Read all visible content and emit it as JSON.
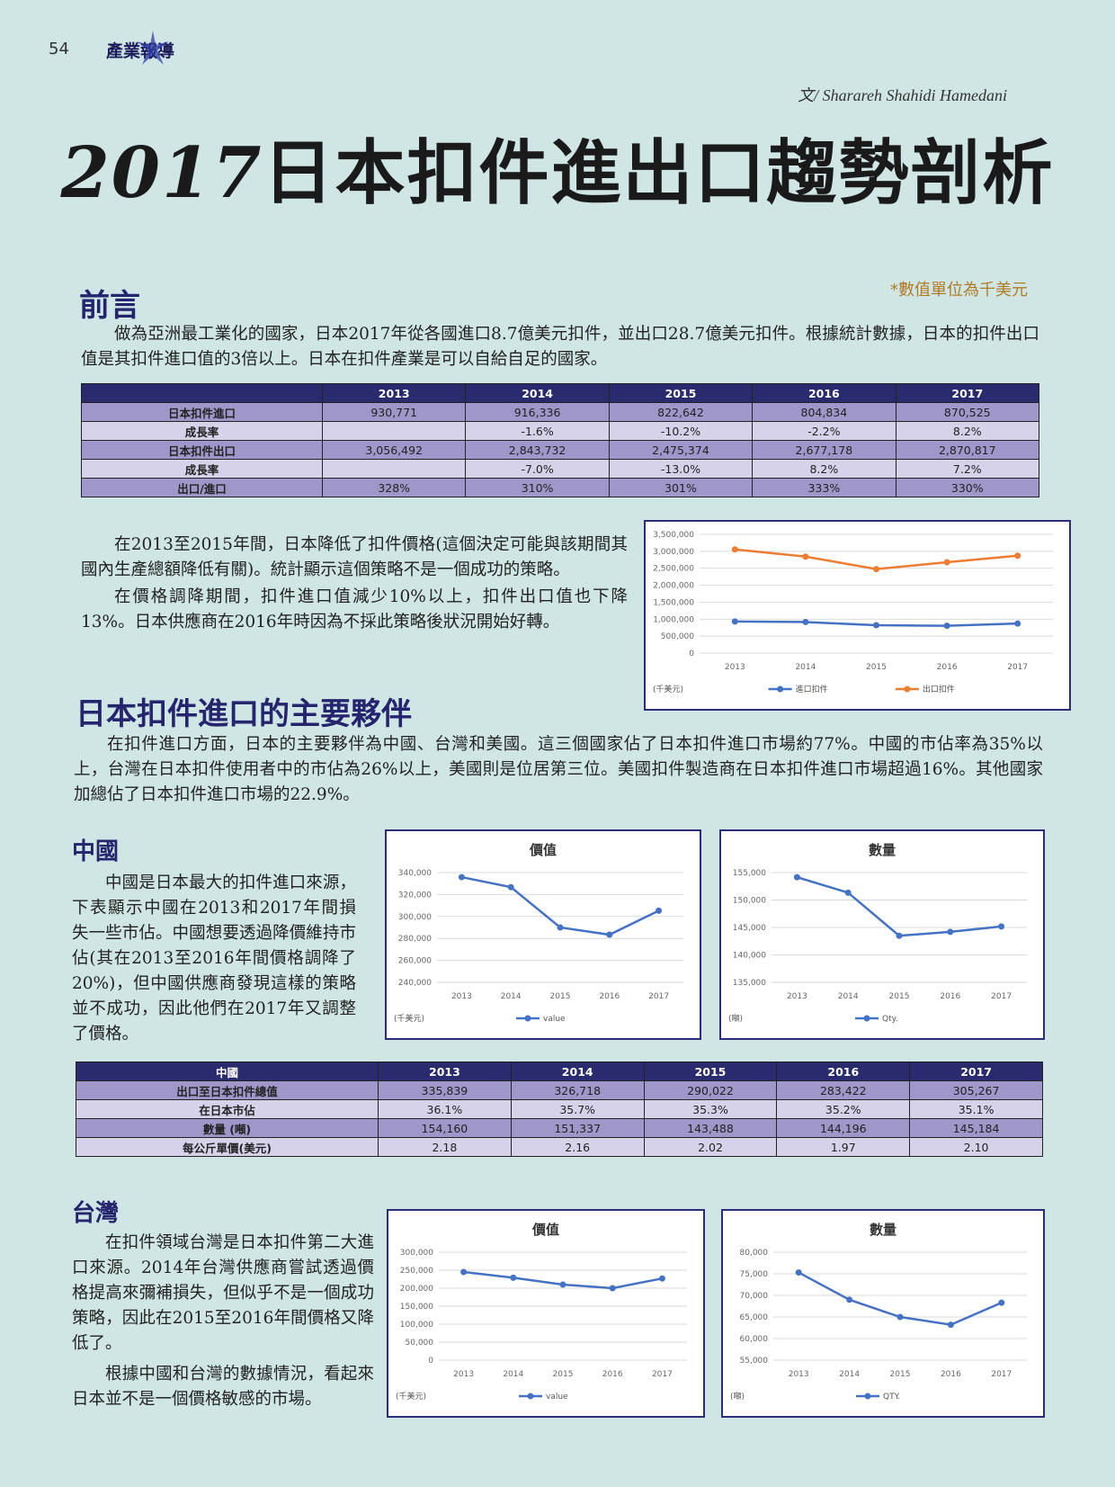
{
  "page": {
    "number": "54",
    "section_tag": "產業報導",
    "author": "文/ Sharareh Shahidi Hamedani",
    "title_year": "2017",
    "title_text": "日本扣件進出口趨勢剖析",
    "unit_note": "*數值單位為千美元"
  },
  "intro": {
    "heading": "前言",
    "p1": "做為亞洲最工業化的國家，日本2017年從各國進口8.7億美元扣件，並出口28.7億美元扣件。根據統計數據，日本的扣件出口值是其扣件進口值的3倍以上。日本在扣件產業是可以自給自足的國家。",
    "p2": "在2013至2015年間，日本降低了扣件價格(這個決定可能與該期間其國內生產總額降低有關)。統計顯示這個策略不是一個成功的策略。",
    "p3": "在價格調降期間，扣件進口值減少10%以上，扣件出口值也下降13%。日本供應商在2016年時因為不採此策略後狀況開始好轉。"
  },
  "overview_table": {
    "header": [
      "",
      "2013",
      "2014",
      "2015",
      "2016",
      "2017"
    ],
    "rows": [
      [
        "日本扣件進口",
        "930,771",
        "916,336",
        "822,642",
        "804,834",
        "870,525"
      ],
      [
        "成長率",
        "",
        "-1.6%",
        "-10.2%",
        "-2.2%",
        "8.2%"
      ],
      [
        "日本扣件出口",
        "3,056,492",
        "2,843,732",
        "2,475,374",
        "2,677,178",
        "2,870,817"
      ],
      [
        "成長率",
        "",
        "-7.0%",
        "-13.0%",
        "8.2%",
        "7.2%"
      ],
      [
        "出口/進口",
        "328%",
        "310%",
        "301%",
        "333%",
        "330%"
      ]
    ]
  },
  "partners": {
    "heading": "日本扣件進口的主要夥伴",
    "p1": "在扣件進口方面，日本的主要夥伴為中國、台灣和美國。這三個國家佔了日本扣件進口市場約77%。中國的市佔率為35%以上，台灣在日本扣件使用者中的市佔為26%以上，美國則是位居第三位。美國扣件製造商在日本扣件進口市場超過16%。其他國家加總佔了日本扣件進口市場的22.9%。"
  },
  "china": {
    "heading": "中國",
    "p1": "中國是日本最大的扣件進口來源，下表顯示中國在2013和2017年間損失一些市佔。中國想要透過降價維持市佔(其在2013至2016年間價格調降了20%)，但中國供應商發現這樣的策略並不成功，因此他們在2017年又調整了價格。",
    "table": {
      "header": [
        "中國",
        "2013",
        "2014",
        "2015",
        "2016",
        "2017"
      ],
      "rows": [
        [
          "出口至日本扣件總值",
          "335,839",
          "326,718",
          "290,022",
          "283,422",
          "305,267"
        ],
        [
          "在日本市佔",
          "36.1%",
          "35.7%",
          "35.3%",
          "35.2%",
          "35.1%"
        ],
        [
          "數量 (噸)",
          "154,160",
          "151,337",
          "143,488",
          "144,196",
          "145,184"
        ],
        [
          "每公斤單價(美元)",
          "2.18",
          "2.16",
          "2.02",
          "1.97",
          "2.10"
        ]
      ]
    }
  },
  "taiwan": {
    "heading": "台灣",
    "p1": "在扣件領域台灣是日本扣件第二大進口來源。2014年台灣供應商嘗試透過價格提高來彌補損失，但似乎不是一個成功策略，因此在2015至2016年間價格又降低了。",
    "p2": "根據中國和台灣的數據情況，看起來日本並不是一個價格敏感的市場。"
  },
  "chart_data": [
    {
      "id": "japan_trade",
      "type": "line",
      "title": "",
      "x": [
        "2013",
        "2014",
        "2015",
        "2016",
        "2017"
      ],
      "ylim": [
        0,
        3500000
      ],
      "yticks": [
        0,
        500000,
        1000000,
        1500000,
        2000000,
        2500000,
        3000000,
        3500000
      ],
      "ytick_labels": [
        "0",
        "500,000",
        "1,000,000",
        "1,500,000",
        "2,000,000",
        "2,500,000",
        "3,000,000",
        "3,500,000"
      ],
      "unit_label": "(千美元)",
      "series": [
        {
          "name": "進口扣件",
          "color": "#4472c4",
          "values": [
            930771,
            916336,
            822642,
            804834,
            870525
          ]
        },
        {
          "name": "出口扣件",
          "color": "#ed7d31",
          "values": [
            3056492,
            2843732,
            2475374,
            2677178,
            2870817
          ]
        }
      ],
      "grid": true,
      "legend": "bottom"
    },
    {
      "id": "china_value",
      "type": "line",
      "title": "價值",
      "x": [
        "2013",
        "2014",
        "2015",
        "2016",
        "2017"
      ],
      "ylim": [
        240000,
        340000
      ],
      "yticks": [
        240000,
        260000,
        280000,
        300000,
        320000,
        340000
      ],
      "ytick_labels": [
        "240,000",
        "260,000",
        "280,000",
        "300,000",
        "320,000",
        "340,000"
      ],
      "unit_label": "(千美元)",
      "series": [
        {
          "name": "value",
          "color": "#4472c4",
          "values": [
            335839,
            326718,
            290022,
            283422,
            305267
          ]
        }
      ],
      "grid": true,
      "legend": "bottom"
    },
    {
      "id": "china_qty",
      "type": "line",
      "title": "數量",
      "x": [
        "2013",
        "2014",
        "2015",
        "2016",
        "2017"
      ],
      "ylim": [
        135000,
        155000
      ],
      "yticks": [
        135000,
        140000,
        145000,
        150000,
        155000
      ],
      "ytick_labels": [
        "135,000",
        "140,000",
        "145,000",
        "150,000",
        "155,000"
      ],
      "unit_label": "(噸)",
      "series": [
        {
          "name": "Qty.",
          "color": "#4472c4",
          "values": [
            154160,
            151337,
            143488,
            144196,
            145184
          ]
        }
      ],
      "grid": true,
      "legend": "bottom"
    },
    {
      "id": "taiwan_value",
      "type": "line",
      "title": "價值",
      "x": [
        "2013",
        "2014",
        "2015",
        "2016",
        "2017"
      ],
      "ylim": [
        0,
        300000
      ],
      "yticks": [
        0,
        50000,
        100000,
        150000,
        200000,
        250000,
        300000
      ],
      "ytick_labels": [
        "0",
        "50,000",
        "100,000",
        "150,000",
        "200,000",
        "250,000",
        "300,000"
      ],
      "unit_label": "(千美元)",
      "series": [
        {
          "name": "value",
          "color": "#4472c4",
          "values": [
            245000,
            229000,
            210000,
            200000,
            227000
          ]
        }
      ],
      "grid": true,
      "legend": "bottom"
    },
    {
      "id": "taiwan_qty",
      "type": "line",
      "title": "數量",
      "x": [
        "2013",
        "2014",
        "2015",
        "2016",
        "2017"
      ],
      "ylim": [
        55000,
        80000
      ],
      "yticks": [
        55000,
        60000,
        65000,
        70000,
        75000,
        80000
      ],
      "ytick_labels": [
        "55,000",
        "60,000",
        "65,000",
        "70,000",
        "75,000",
        "80,000"
      ],
      "unit_label": "(噸)",
      "series": [
        {
          "name": "QTY.",
          "color": "#4472c4",
          "values": [
            75300,
            69000,
            65000,
            63200,
            68300
          ]
        }
      ],
      "grid": true,
      "legend": "bottom"
    }
  ]
}
